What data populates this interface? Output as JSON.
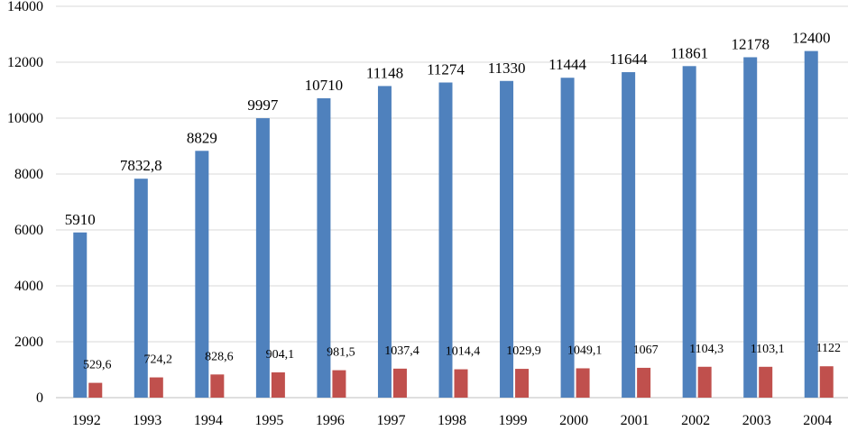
{
  "chart_data": {
    "type": "bar",
    "categories": [
      "1992",
      "1993",
      "1994",
      "1995",
      "1996",
      "1997",
      "1998",
      "1999",
      "2000",
      "2001",
      "2002",
      "2003",
      "2004"
    ],
    "series": [
      {
        "color": "#4f81bd",
        "values": [
          5910,
          7832.8,
          8829,
          9997,
          10710,
          11148,
          11274,
          11330,
          11444,
          11644,
          11861,
          12178,
          12400
        ],
        "labels": [
          "5910",
          "7832,8",
          "8829",
          "9997",
          "10710",
          "11148",
          "11274",
          "11330",
          "11444",
          "11644",
          "11861",
          "12178",
          "12400"
        ]
      },
      {
        "color": "#c0504d",
        "values": [
          529.6,
          724.2,
          828.6,
          904.1,
          981.5,
          1037.4,
          1014.4,
          1029.9,
          1049.1,
          1067,
          1104.3,
          1103.1,
          1122
        ],
        "labels": [
          "529,6",
          "724,2",
          "828,6",
          "904,1",
          "981,5",
          "1037,4",
          "1014,4",
          "1029,9",
          "1049,1",
          "1067",
          "1104,3",
          "1103,1",
          "1122"
        ]
      }
    ],
    "ylim": [
      0,
      14000
    ],
    "yticks": [
      "0",
      "2000",
      "4000",
      "6000",
      "8000",
      "10000",
      "12000",
      "14000"
    ],
    "grid": true,
    "title": "",
    "xlabel": "",
    "ylabel": ""
  }
}
